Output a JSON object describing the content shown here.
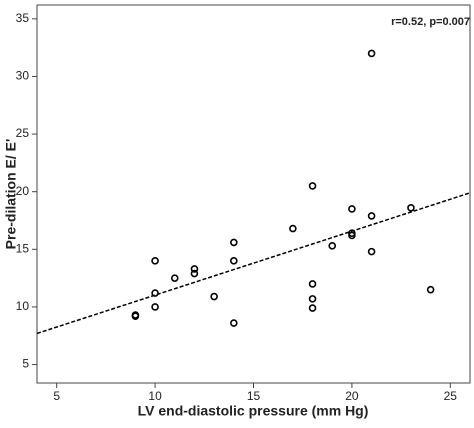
{
  "chart_data": {
    "type": "scatter",
    "x_label": "LV end-diastolic pressure (mm Hg)",
    "y_label": "Pre-dilation E/ E'",
    "annotation": "r=0.52, p=0.007",
    "xlim": [
      4,
      26
    ],
    "ylim": [
      3.4,
      36.2
    ],
    "xticks": [
      5,
      10,
      15,
      20,
      25
    ],
    "yticks": [
      5,
      10,
      15,
      20,
      25,
      30,
      35
    ],
    "color": "#000000",
    "x": [
      9,
      9,
      10,
      10,
      10,
      11,
      12,
      12,
      13,
      14,
      14,
      14,
      17,
      18,
      18,
      18,
      18,
      19,
      20,
      20,
      20,
      21,
      21,
      21,
      23,
      24
    ],
    "values": [
      9.3,
      9.2,
      14.0,
      11.2,
      10.0,
      12.5,
      13.3,
      12.9,
      10.9,
      15.6,
      14.0,
      8.6,
      16.8,
      20.5,
      12.0,
      10.7,
      9.9,
      15.3,
      18.5,
      16.4,
      16.2,
      17.9,
      14.8,
      32.0,
      18.6,
      11.5
    ],
    "fit_line": {
      "x": [
        4,
        26
      ],
      "values": [
        7.7,
        19.9
      ],
      "color": "#000000"
    }
  }
}
